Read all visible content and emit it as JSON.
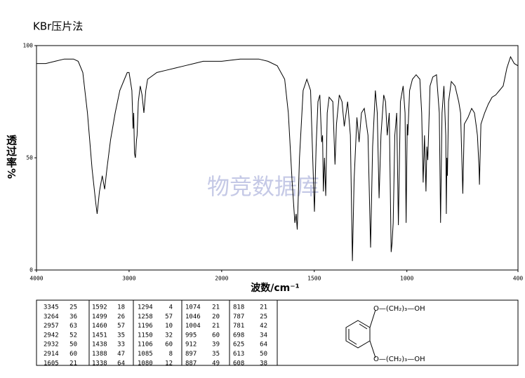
{
  "chart_data": {
    "type": "line",
    "title": "KBr压片法",
    "xlabel": "波数/cm⁻¹",
    "ylabel": "透过率%",
    "watermark": "物竞数据库",
    "xlim": [
      4000,
      400
    ],
    "xticks": [
      4000,
      3000,
      2000,
      1500,
      1000,
      400
    ],
    "xscale_break": 2000,
    "ylim": [
      0,
      100
    ],
    "yticks": [
      0,
      50,
      100
    ],
    "series": [
      {
        "color": "#000000",
        "x": [
          4000,
          3900,
          3800,
          3700,
          3600,
          3550,
          3500,
          3450,
          3400,
          3360,
          3345,
          3320,
          3290,
          3264,
          3240,
          3200,
          3150,
          3100,
          3050,
          3020,
          3000,
          2970,
          2957,
          2950,
          2942,
          2932,
          2920,
          2914,
          2900,
          2880,
          2860,
          2840,
          2820,
          2800,
          2700,
          2600,
          2500,
          2400,
          2300,
          2200,
          2100,
          2000,
          1900,
          1800,
          1750,
          1700,
          1660,
          1640,
          1620,
          1605,
          1598,
          1592,
          1580,
          1560,
          1540,
          1520,
          1499,
          1490,
          1480,
          1470,
          1460,
          1455,
          1451,
          1445,
          1438,
          1430,
          1420,
          1400,
          1388,
          1380,
          1365,
          1350,
          1338,
          1320,
          1305,
          1294,
          1285,
          1270,
          1258,
          1245,
          1230,
          1210,
          1196,
          1185,
          1170,
          1160,
          1150,
          1140,
          1125,
          1115,
          1106,
          1095,
          1085,
          1080,
          1074,
          1065,
          1055,
          1046,
          1035,
          1020,
          1010,
          1004,
          998,
          995,
          985,
          970,
          950,
          930,
          920,
          912,
          905,
          897,
          892,
          887,
          875,
          860,
          840,
          825,
          818,
          810,
          800,
          790,
          787,
          784,
          781,
          775,
          760,
          740,
          720,
          710,
          698,
          690,
          670,
          650,
          635,
          625,
          619,
          613,
          610,
          608,
          600,
          580,
          560,
          540,
          520,
          500,
          480,
          460,
          440,
          420,
          400
        ],
        "values": [
          92,
          92,
          93,
          94,
          94,
          93,
          88,
          70,
          45,
          30,
          25,
          35,
          42,
          36,
          45,
          58,
          70,
          80,
          85,
          88,
          88,
          80,
          63,
          70,
          52,
          50,
          58,
          60,
          75,
          82,
          78,
          70,
          80,
          85,
          88,
          89,
          90,
          91,
          92,
          93,
          93,
          93,
          94,
          94,
          93,
          91,
          85,
          70,
          40,
          21,
          25,
          18,
          50,
          80,
          85,
          80,
          26,
          55,
          75,
          78,
          57,
          60,
          35,
          50,
          33,
          70,
          77,
          75,
          47,
          65,
          78,
          75,
          64,
          75,
          60,
          4,
          40,
          68,
          57,
          70,
          72,
          60,
          10,
          55,
          80,
          70,
          32,
          60,
          78,
          75,
          60,
          70,
          8,
          12,
          21,
          60,
          70,
          20,
          75,
          82,
          70,
          21,
          65,
          60,
          80,
          85,
          87,
          85,
          70,
          39,
          60,
          35,
          55,
          49,
          82,
          86,
          87,
          70,
          21,
          70,
          82,
          60,
          25,
          50,
          42,
          75,
          84,
          82,
          75,
          70,
          34,
          65,
          68,
          72,
          70,
          64,
          60,
          50,
          45,
          38,
          65,
          70,
          74,
          77,
          78,
          80,
          82,
          90,
          95,
          92,
          91
        ]
      }
    ]
  },
  "peak_table": {
    "columns": [
      [
        [
          3345,
          25
        ],
        [
          3264,
          36
        ],
        [
          2957,
          63
        ],
        [
          2942,
          52
        ],
        [
          2932,
          50
        ],
        [
          2914,
          60
        ],
        [
          1605,
          21
        ]
      ],
      [
        [
          1592,
          18
        ],
        [
          1499,
          26
        ],
        [
          1460,
          57
        ],
        [
          1451,
          35
        ],
        [
          1438,
          33
        ],
        [
          1388,
          47
        ],
        [
          1338,
          64
        ]
      ],
      [
        [
          1294,
          4
        ],
        [
          1258,
          57
        ],
        [
          1196,
          10
        ],
        [
          1150,
          32
        ],
        [
          1106,
          60
        ],
        [
          1085,
          8
        ],
        [
          1080,
          12
        ]
      ],
      [
        [
          1074,
          21
        ],
        [
          1046,
          20
        ],
        [
          1004,
          21
        ],
        [
          995,
          60
        ],
        [
          912,
          39
        ],
        [
          897,
          35
        ],
        [
          887,
          49
        ]
      ],
      [
        [
          818,
          21
        ],
        [
          787,
          25
        ],
        [
          781,
          42
        ],
        [
          698,
          34
        ],
        [
          625,
          64
        ],
        [
          613,
          50
        ],
        [
          608,
          38
        ]
      ]
    ]
  },
  "structure": {
    "substituents": [
      "O—(CH₂)₃—OH",
      "O—(CH₂)₃—OH"
    ]
  }
}
